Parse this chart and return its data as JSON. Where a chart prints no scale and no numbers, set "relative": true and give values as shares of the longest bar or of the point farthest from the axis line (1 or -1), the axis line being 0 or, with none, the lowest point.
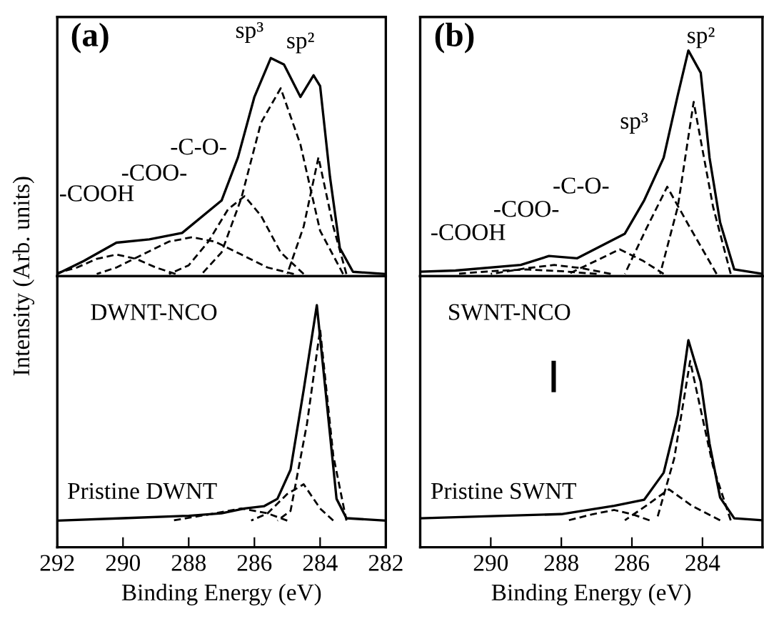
{
  "chart_data": [
    {
      "type": "line",
      "relative": true,
      "ylabel": "Intensity (Arb. units)",
      "xlim": [
        292,
        282
      ],
      "tick_labels": false,
      "legend": false,
      "grid": false,
      "annotations": [
        "(a)",
        "sp³",
        "sp²",
        "-C-O-",
        "-COO-",
        "-COOH"
      ],
      "series": [
        {
          "color": "#000000",
          "line_style": "solid",
          "x": [
            282,
            283.0,
            283.4,
            283.7,
            284.0,
            284.2,
            284.6,
            285.1,
            285.5,
            286.0,
            286.5,
            287.0,
            288.2,
            289.2,
            290.2,
            291.2,
            292
          ],
          "values": [
            0,
            0.01,
            0.12,
            0.45,
            0.87,
            0.92,
            0.82,
            0.97,
            1.0,
            0.82,
            0.54,
            0.34,
            0.19,
            0.16,
            0.145,
            0.06,
            0.0
          ]
        },
        {
          "color": "#000000",
          "line_style": "dashed",
          "x": [
            288.4,
            289.0,
            289.6,
            290.2,
            290.8,
            291.4,
            292
          ],
          "values": [
            0,
            0.03,
            0.07,
            0.09,
            0.07,
            0.03,
            0.005
          ]
        },
        {
          "color": "#000000",
          "line_style": "dashed",
          "x": [
            284.8,
            285.6,
            286.4,
            287.2,
            287.9,
            288.6,
            289.4,
            290.2,
            290.8
          ],
          "values": [
            0,
            0.03,
            0.09,
            0.15,
            0.17,
            0.15,
            0.09,
            0.03,
            0
          ]
        },
        {
          "color": "#000000",
          "line_style": "dashed",
          "x": [
            284.5,
            285.2,
            285.8,
            286.3,
            286.8,
            287.4,
            288.0,
            288.6
          ],
          "values": [
            0,
            0.1,
            0.27,
            0.36,
            0.3,
            0.15,
            0.04,
            0
          ]
        },
        {
          "color": "#000000",
          "line_style": "dashed",
          "x": [
            283.3,
            284.0,
            284.6,
            285.2,
            285.8,
            286.4,
            287.0,
            287.6
          ],
          "values": [
            0,
            0.2,
            0.6,
            0.86,
            0.7,
            0.35,
            0.1,
            0
          ]
        },
        {
          "color": "#000000",
          "line_style": "dashed",
          "x": [
            283.2,
            283.6,
            284.05,
            284.5,
            285.0
          ],
          "values": [
            0,
            0.22,
            0.54,
            0.22,
            0
          ]
        }
      ]
    },
    {
      "type": "line",
      "relative": true,
      "xlabel": "Binding Energy (eV)",
      "xlim": [
        292,
        282
      ],
      "xticks": [
        292,
        290,
        288,
        286,
        284,
        282
      ],
      "tick_labels": "x",
      "legend": false,
      "grid": false,
      "annotations": [
        "DWNT-NCO",
        "Pristine DWNT"
      ],
      "series": [
        {
          "color": "#000000",
          "line_style": "solid",
          "x": [
            282,
            283.2,
            283.5,
            283.8,
            284.1,
            284.5,
            284.9,
            285.3,
            285.7,
            286.3,
            287.0,
            288.0,
            290.0,
            292
          ],
          "values": [
            0.11,
            0.12,
            0.2,
            0.6,
            1.0,
            0.65,
            0.32,
            0.2,
            0.17,
            0.16,
            0.14,
            0.13,
            0.12,
            0.11
          ]
        },
        {
          "color": "#000000",
          "line_style": "dashed",
          "x": [
            283.2,
            283.6,
            284.0,
            284.4,
            284.9,
            285.3
          ],
          "values": [
            0.11,
            0.38,
            0.9,
            0.51,
            0.15,
            0.11
          ]
        },
        {
          "color": "#000000",
          "line_style": "dashed",
          "x": [
            283.6,
            284.0,
            284.5,
            285.0,
            285.6,
            286.1
          ],
          "values": [
            0.11,
            0.16,
            0.26,
            0.22,
            0.14,
            0.11
          ]
        },
        {
          "color": "#000000",
          "line_style": "dashed",
          "x": [
            285.0,
            285.6,
            286.4,
            287.2,
            288.5
          ],
          "values": [
            0.11,
            0.14,
            0.16,
            0.14,
            0.11
          ]
        }
      ]
    },
    {
      "type": "line",
      "relative": true,
      "xlim": [
        292,
        282.3
      ],
      "tick_labels": false,
      "legend": false,
      "grid": false,
      "annotations": [
        "(b)",
        "sp²",
        "sp³",
        "-C-O-",
        "-COO-",
        "-COOH"
      ],
      "series": [
        {
          "color": "#000000",
          "line_style": "solid",
          "x": [
            282.3,
            283.1,
            283.5,
            283.8,
            284.05,
            284.4,
            284.7,
            285.1,
            285.65,
            286.2,
            287.55,
            288.35,
            289.15,
            291,
            292
          ],
          "values": [
            0,
            0.02,
            0.23,
            0.52,
            0.9,
            1.0,
            0.8,
            0.52,
            0.33,
            0.18,
            0.07,
            0.08,
            0.04,
            0.015,
            0.01
          ]
        },
        {
          "color": "#000000",
          "line_style": "dashed",
          "x": [
            283.2,
            283.7,
            284.25,
            284.7,
            285.2
          ],
          "values": [
            0,
            0.3,
            0.77,
            0.3,
            0
          ]
        },
        {
          "color": "#000000",
          "line_style": "dashed",
          "x": [
            283.6,
            284.4,
            285.0,
            285.6,
            286.2
          ],
          "values": [
            0,
            0.22,
            0.39,
            0.2,
            0
          ]
        },
        {
          "color": "#000000",
          "line_style": "dashed",
          "x": [
            285.1,
            285.7,
            286.35,
            287.0,
            287.8
          ],
          "values": [
            0,
            0.06,
            0.11,
            0.06,
            0
          ]
        },
        {
          "color": "#000000",
          "line_style": "dashed",
          "x": [
            286.6,
            287.4,
            288.2,
            289.0,
            290.0
          ],
          "values": [
            0,
            0.025,
            0.04,
            0.025,
            0
          ]
        },
        {
          "color": "#000000",
          "line_style": "dashed",
          "x": [
            287.0,
            288.0,
            289.0,
            290.0,
            291.0
          ],
          "values": [
            0,
            0.012,
            0.02,
            0.012,
            0
          ]
        }
      ]
    },
    {
      "type": "line",
      "relative": true,
      "xlabel": "Binding Energy (eV)",
      "xlim": [
        292,
        282.3
      ],
      "xticks": [
        290,
        288,
        286,
        284
      ],
      "tick_labels": "x",
      "legend": false,
      "grid": false,
      "annotations": [
        "SWNT-NCO",
        "Pristine SWNT"
      ],
      "series": [
        {
          "color": "#000000",
          "line_style": "solid",
          "x": [
            282.3,
            283.1,
            283.5,
            283.8,
            284.05,
            284.4,
            284.7,
            285.1,
            285.65,
            286.5,
            288.0,
            290.0,
            292
          ],
          "values": [
            0.13,
            0.14,
            0.24,
            0.5,
            0.8,
            1.0,
            0.64,
            0.36,
            0.23,
            0.2,
            0.16,
            0.15,
            0.14
          ]
        },
        {
          "color": "#000000",
          "line_style": "dashed",
          "x": [
            283.2,
            283.7,
            284.35,
            284.8,
            285.3
          ],
          "values": [
            0.13,
            0.39,
            0.9,
            0.43,
            0.13
          ]
        },
        {
          "color": "#000000",
          "line_style": "dashed",
          "x": [
            283.5,
            284.3,
            284.95,
            285.6,
            286.2
          ],
          "values": [
            0.13,
            0.2,
            0.28,
            0.2,
            0.13
          ]
        },
        {
          "color": "#000000",
          "line_style": "dashed",
          "x": [
            285.5,
            286.0,
            286.5,
            287.1,
            287.8
          ],
          "values": [
            0.13,
            0.16,
            0.18,
            0.16,
            0.13
          ]
        }
      ]
    }
  ]
}
